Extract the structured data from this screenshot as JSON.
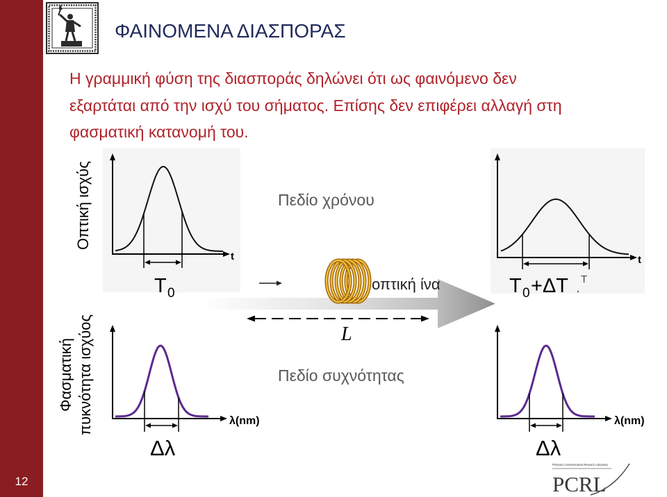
{
  "slide": {
    "title": "ΦΑΙΝΟΜΕΝΑ ΔΙΑΣΠΟΡΑΣ",
    "body": [
      "Η γραμμική φύση της διασποράς δηλώνει ότι ως φαινόμενο δεν",
      "εξαρτάται από την ισχύ του σήματος. Επίσης δεν επιφέρει αλλαγή στη",
      "φασματική κατανομή του."
    ],
    "page_number": "12"
  },
  "diagram": {
    "optical_power_label": "Οπτική ισχύς",
    "spectral_density_label": [
      "Φασματική",
      "πυκνότητα ισχύος"
    ],
    "time_domain_label": "Πεδίο χρόνου",
    "frequency_domain_label": "Πεδίο συχνότητας",
    "fiber_label": "οπτική ίνα",
    "fiber_length_label": "L",
    "input_pulse": {
      "axis_label": "t",
      "width": {
        "symbol": "T",
        "subscript": "0"
      }
    },
    "output_pulse": {
      "axis_label": "t",
      "width": {
        "symbol": "T",
        "subscript": "0",
        "suffix": "+ΔT"
      },
      "corner_mark": "T"
    },
    "input_spectrum": {
      "axis_label": "λ(nm)",
      "width_label": "Δλ"
    },
    "output_spectrum": {
      "axis_label": "λ(nm)",
      "width_label": "Δλ"
    }
  },
  "logos": {
    "university_emblem": "university-emblem-icon",
    "lab_logo": {
      "text": "PCRL",
      "caption": "Photonics Communications Research Laboratory"
    }
  },
  "colors": {
    "sidebar": "#8A1D22",
    "title": "#1F2A5B",
    "body_text": "#B0232A",
    "domain_label": "#595959",
    "spectrum_curve": "#5B2A8E",
    "pulse_curve": "#111111",
    "fiber_coil": "#F0BE3E"
  }
}
